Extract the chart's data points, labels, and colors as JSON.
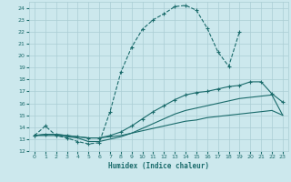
{
  "xlabel": "Humidex (Indice chaleur)",
  "xlim": [
    -0.5,
    23.5
  ],
  "ylim": [
    12,
    24.5
  ],
  "yticks": [
    12,
    13,
    14,
    15,
    16,
    17,
    18,
    19,
    20,
    21,
    22,
    23,
    24
  ],
  "xticks": [
    0,
    1,
    2,
    3,
    4,
    5,
    6,
    7,
    8,
    9,
    10,
    11,
    12,
    13,
    14,
    15,
    16,
    17,
    18,
    19,
    20,
    21,
    22,
    23
  ],
  "bg_color": "#cce8ed",
  "grid_color": "#aacdd4",
  "line_color": "#1a6b6b",
  "curve1_x": [
    0,
    1,
    2,
    3,
    4,
    5,
    6,
    7,
    8,
    9,
    10,
    11,
    12,
    13,
    14,
    15,
    16,
    17,
    18,
    19
  ],
  "curve1_y": [
    13.3,
    14.1,
    13.3,
    13.1,
    12.8,
    12.6,
    12.7,
    15.3,
    18.6,
    20.7,
    22.2,
    23.0,
    23.5,
    24.1,
    24.2,
    23.8,
    22.3,
    20.3,
    19.1,
    22.0
  ],
  "curve2_x": [
    0,
    1,
    2,
    3,
    4,
    5,
    6,
    7,
    8,
    9,
    10,
    11,
    12,
    13,
    14,
    15,
    16,
    17,
    18,
    19,
    20,
    21,
    22,
    23
  ],
  "curve2_y": [
    13.3,
    13.4,
    13.4,
    13.3,
    13.2,
    13.1,
    13.1,
    13.2,
    13.3,
    13.5,
    13.7,
    13.9,
    14.1,
    14.3,
    14.5,
    14.6,
    14.8,
    14.9,
    15.0,
    15.1,
    15.2,
    15.3,
    15.4,
    15.0
  ],
  "curve3_x": [
    0,
    1,
    2,
    3,
    4,
    5,
    6,
    7,
    8,
    9,
    10,
    11,
    12,
    13,
    14,
    15,
    16,
    17,
    18,
    19,
    20,
    21,
    22,
    23
  ],
  "curve3_y": [
    13.3,
    13.4,
    13.4,
    13.3,
    13.2,
    13.1,
    13.1,
    13.3,
    13.6,
    14.1,
    14.7,
    15.3,
    15.8,
    16.3,
    16.7,
    16.9,
    17.0,
    17.2,
    17.4,
    17.5,
    17.8,
    17.8,
    16.8,
    16.1
  ],
  "curve4_x": [
    0,
    2,
    3,
    4,
    5,
    6,
    7,
    8,
    9,
    10,
    11,
    12,
    13,
    14,
    15,
    16,
    17,
    18,
    19,
    20,
    21,
    22,
    23
  ],
  "curve4_y": [
    13.3,
    13.3,
    13.2,
    13.1,
    12.8,
    12.8,
    13.0,
    13.2,
    13.5,
    13.9,
    14.3,
    14.7,
    15.1,
    15.4,
    15.6,
    15.8,
    16.0,
    16.2,
    16.4,
    16.5,
    16.6,
    16.7,
    15.0
  ]
}
